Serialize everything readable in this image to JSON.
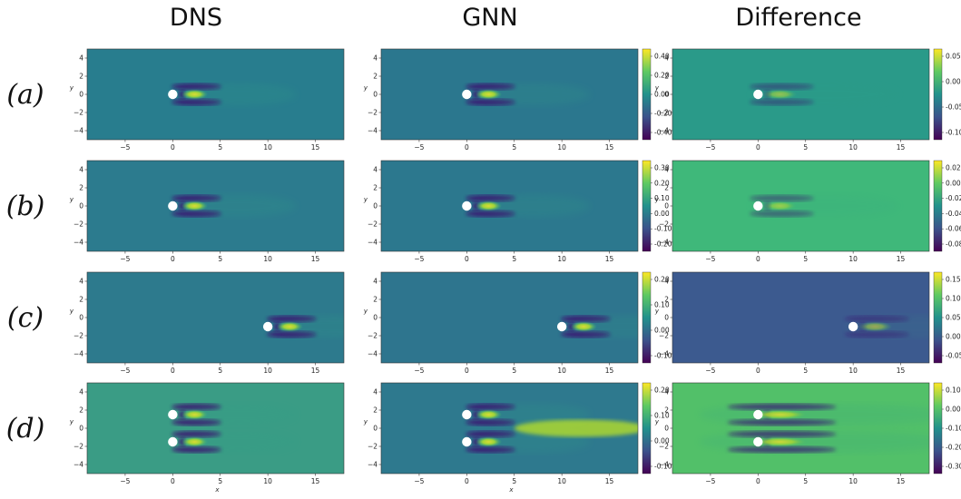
{
  "columns": [
    "DNS",
    "GNN",
    "Difference"
  ],
  "rows": [
    {
      "label": "(a)",
      "cylinders": [
        {
          "x": 0,
          "y": 0
        }
      ],
      "colorbars": {
        "GNN": [
          "0.40",
          "0.20",
          "0.00",
          "-0.20",
          "-0.40"
        ],
        "Difference": [
          "0.05",
          "0.00",
          "-0.05",
          "-0.10"
        ]
      }
    },
    {
      "label": "(b)",
      "cylinders": [
        {
          "x": 0,
          "y": 0
        }
      ],
      "colorbars": {
        "GNN": [
          "0.30",
          "0.20",
          "0.10",
          "0.00",
          "-0.10",
          "-0.20"
        ],
        "Difference": [
          "0.02",
          "0.00",
          "-0.02",
          "-0.04",
          "-0.06",
          "-0.08"
        ]
      }
    },
    {
      "label": "(c)",
      "cylinders": [
        {
          "x": 10,
          "y": -1
        }
      ],
      "colorbars": {
        "GNN": [
          "0.20",
          "0.10",
          "0.00",
          "-0.10"
        ],
        "Difference": [
          "0.15",
          "0.10",
          "0.05",
          "0.00",
          "-0.05"
        ]
      }
    },
    {
      "label": "(d)",
      "cylinders": [
        {
          "x": 0,
          "y": 1.5
        },
        {
          "x": 0,
          "y": -1.5
        }
      ],
      "colorbars": {
        "GNN": [
          "0.20",
          "0.10",
          "0.00",
          "-0.10"
        ],
        "Difference": [
          "0.10",
          "0.00",
          "-0.10",
          "-0.20",
          "-0.30"
        ]
      }
    }
  ],
  "axes": {
    "xticks": [
      "−5",
      "0",
      "5",
      "10",
      "15"
    ],
    "yticks": [
      "4",
      "2",
      "0",
      "−2",
      "−4"
    ],
    "xlabel": "x",
    "ylabel": "y"
  },
  "colormap": "viridis"
}
